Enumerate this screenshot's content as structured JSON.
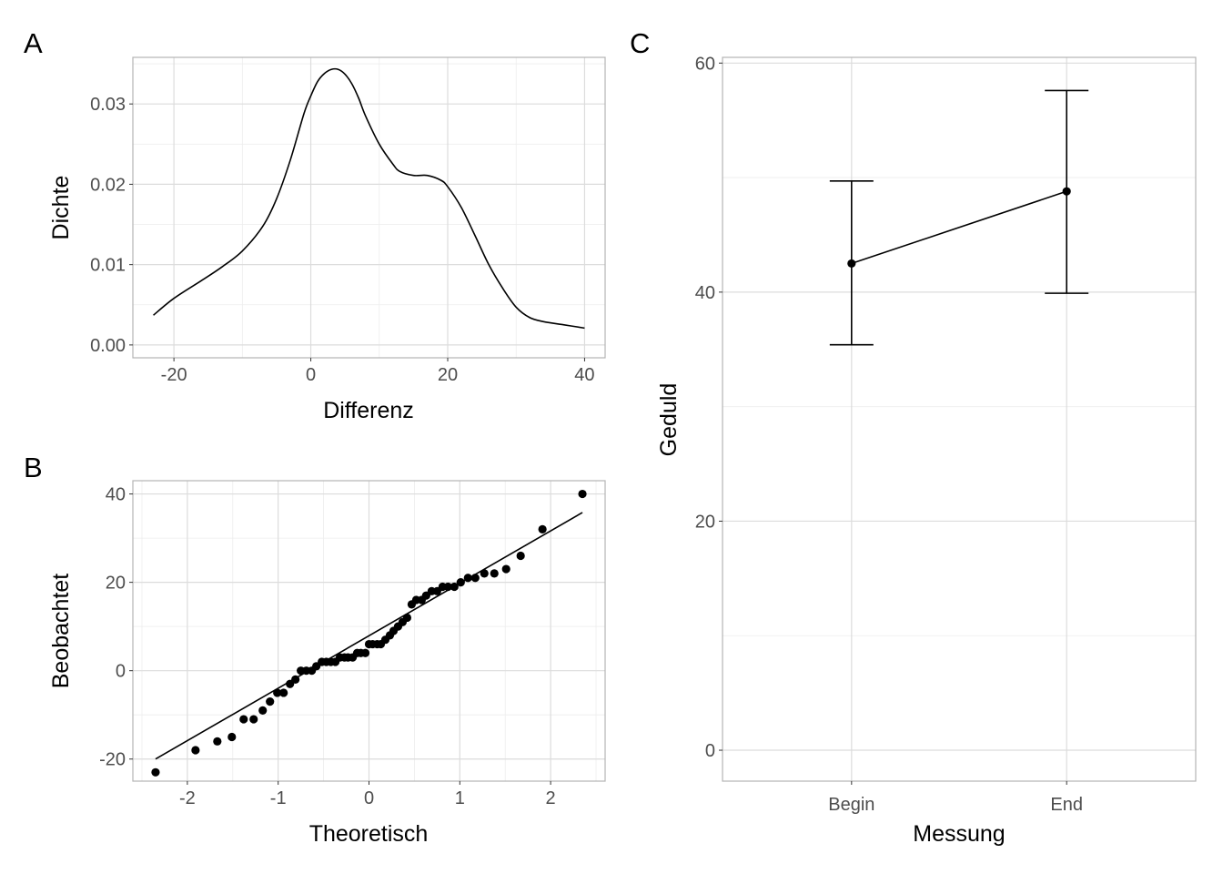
{
  "chart_data": [
    {
      "tag": "A",
      "type": "line",
      "xlabel": "Differenz",
      "ylabel": "Dichte",
      "xlim": [
        -26,
        43
      ],
      "ylim": [
        -0.0016,
        0.0358
      ],
      "x_ticks": [
        -20,
        0,
        20,
        40
      ],
      "x_tick_labels": [
        "-20",
        "0",
        "20",
        "40"
      ],
      "y_ticks": [
        0,
        0.01,
        0.02,
        0.03
      ],
      "y_tick_labels": [
        "0.00",
        "0.01",
        "0.02",
        "0.03"
      ],
      "grid": true,
      "series": [
        {
          "x": [
            -23,
            -20,
            -16,
            -13,
            -10,
            -7,
            -5,
            -3,
            -1,
            0,
            1,
            2,
            3,
            4,
            5,
            6,
            7,
            8,
            10,
            12,
            13,
            15,
            17,
            19,
            20,
            22,
            24,
            26,
            28,
            30,
            32,
            34,
            37,
            40
          ],
          "y": [
            0.0037,
            0.0058,
            0.008,
            0.0097,
            0.0117,
            0.0148,
            0.0182,
            0.023,
            0.0288,
            0.031,
            0.0328,
            0.0338,
            0.0343,
            0.0343,
            0.0337,
            0.0325,
            0.0307,
            0.0285,
            0.025,
            0.0225,
            0.0216,
            0.0211,
            0.0211,
            0.0205,
            0.0197,
            0.0171,
            0.0136,
            0.01,
            0.0071,
            0.0047,
            0.0034,
            0.0029,
            0.0025,
            0.0021
          ]
        }
      ]
    },
    {
      "tag": "B",
      "type": "scatter",
      "xlabel": "Theoretisch",
      "ylabel": "Beobachtet",
      "xlim": [
        -2.6,
        2.6
      ],
      "ylim": [
        -25,
        43
      ],
      "x_ticks": [
        -2,
        -1,
        0,
        1,
        2
      ],
      "x_tick_labels": [
        "-2",
        "-1",
        "0",
        "1",
        "2"
      ],
      "y_ticks": [
        -20,
        0,
        20,
        40
      ],
      "y_tick_labels": [
        "-20",
        "0",
        "20",
        "40"
      ],
      "grid": true,
      "reference_line": {
        "x": [
          -2.35,
          2.35
        ],
        "y": [
          -20,
          35.8
        ]
      },
      "series": [
        {
          "x": [
            -2.35,
            -1.91,
            -1.67,
            -1.51,
            -1.38,
            -1.27,
            -1.17,
            -1.09,
            -1.01,
            -0.94,
            -0.87,
            -0.81,
            -0.75,
            -0.69,
            -0.63,
            -0.58,
            -0.52,
            -0.47,
            -0.42,
            -0.37,
            -0.32,
            -0.27,
            -0.23,
            -0.18,
            -0.13,
            -0.09,
            -0.04,
            0.0,
            0.04,
            0.09,
            0.13,
            0.18,
            0.23,
            0.27,
            0.32,
            0.37,
            0.42,
            0.47,
            0.52,
            0.58,
            0.63,
            0.69,
            0.75,
            0.81,
            0.87,
            0.94,
            1.01,
            1.09,
            1.17,
            1.27,
            1.38,
            1.51,
            1.67,
            1.91,
            2.35
          ],
          "y": [
            -23,
            -18,
            -16,
            -15,
            -11,
            -11,
            -9,
            -7,
            -5,
            -5,
            -3,
            -2,
            0,
            0,
            0,
            1,
            2,
            2,
            2,
            2,
            3,
            3,
            3,
            3,
            4,
            4,
            4,
            6,
            6,
            6,
            6,
            7,
            8,
            9,
            10,
            11,
            12,
            15,
            16,
            16,
            17,
            18,
            18,
            19,
            19,
            19,
            20,
            21,
            21,
            22,
            22,
            23,
            26,
            32,
            40
          ]
        }
      ]
    },
    {
      "tag": "C",
      "type": "line",
      "xlabel": "Messung",
      "ylabel": "Geduld",
      "categories": [
        "Begin",
        "End"
      ],
      "ylim": [
        -2.7,
        60.5
      ],
      "y_ticks": [
        0,
        20,
        40,
        60
      ],
      "y_tick_labels": [
        "0",
        "20",
        "40",
        "60"
      ],
      "grid": true,
      "series": [
        {
          "values": [
            42.5,
            48.8
          ],
          "lower": [
            35.4,
            39.9
          ],
          "upper": [
            49.7,
            57.6
          ]
        }
      ]
    }
  ]
}
